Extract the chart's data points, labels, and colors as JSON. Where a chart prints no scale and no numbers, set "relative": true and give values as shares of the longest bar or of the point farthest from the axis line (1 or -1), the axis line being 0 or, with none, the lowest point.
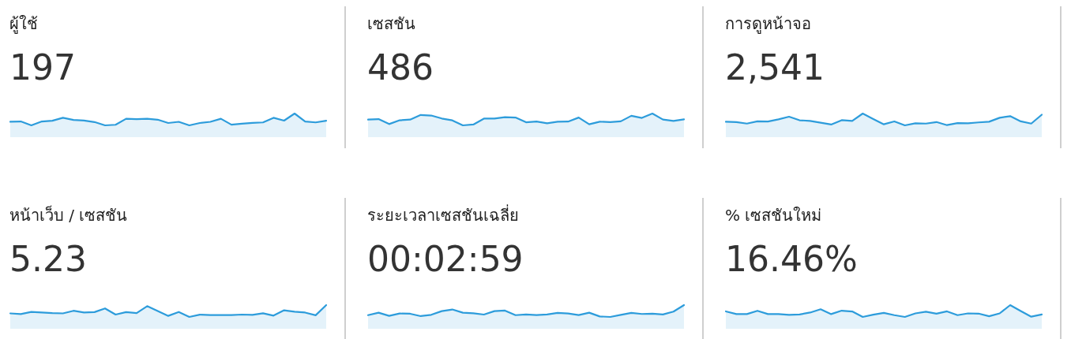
{
  "chart_data": [
    {
      "type": "area",
      "title": "ผู้ใช้",
      "subtitle": "197",
      "relative": true,
      "color": "#2d9cdb",
      "categories": [
        null,
        null,
        null,
        null,
        null,
        null,
        null,
        null,
        null,
        null,
        null,
        null,
        null,
        null,
        null,
        null,
        null,
        null,
        null,
        null,
        null,
        null,
        null,
        null,
        null,
        null,
        null,
        null,
        null,
        null,
        null
      ],
      "values": [
        0.31,
        0.33,
        0,
        0.33,
        0.39,
        0.64,
        0.46,
        0.41,
        0.28,
        0,
        0.05,
        0.56,
        0.53,
        0.56,
        0.48,
        0.2,
        0.3,
        0,
        0.2,
        0.3,
        0.56,
        0.06,
        0.14,
        0.21,
        0.25,
        0.64,
        0.4,
        1,
        0.33,
        0.25,
        0.39
      ]
    },
    {
      "type": "area",
      "title": "เซสชัน",
      "subtitle": "486",
      "relative": true,
      "color": "#2d9cdb",
      "categories": [
        null,
        null,
        null,
        null,
        null,
        null,
        null,
        null,
        null,
        null,
        null,
        null,
        null,
        null,
        null,
        null,
        null,
        null,
        null,
        null,
        null,
        null,
        null,
        null,
        null,
        null,
        null,
        null,
        null,
        null,
        null
      ],
      "values": [
        0.49,
        0.53,
        0.11,
        0.43,
        0.49,
        0.88,
        0.83,
        0.58,
        0.42,
        0,
        0.07,
        0.57,
        0.58,
        0.69,
        0.66,
        0.26,
        0.32,
        0.18,
        0.31,
        0.32,
        0.66,
        0.09,
        0.31,
        0.28,
        0.34,
        0.81,
        0.63,
        1,
        0.49,
        0.38,
        0.51
      ]
    },
    {
      "type": "area",
      "title": "การดูหน้าจอ",
      "subtitle": "2,541",
      "relative": true,
      "color": "#2d9cdb",
      "categories": [
        null,
        null,
        null,
        null,
        null,
        null,
        null,
        null,
        null,
        null,
        null,
        null,
        null,
        null,
        null,
        null,
        null,
        null,
        null,
        null,
        null,
        null,
        null,
        null,
        null,
        null,
        null,
        null,
        null,
        null,
        null
      ],
      "values": [
        0.31,
        0.28,
        0.15,
        0.34,
        0.33,
        0.51,
        0.73,
        0.43,
        0.38,
        0.22,
        0.07,
        0.44,
        0.38,
        1,
        0.54,
        0.09,
        0.33,
        0,
        0.17,
        0.15,
        0.28,
        0.02,
        0.19,
        0.17,
        0.25,
        0.31,
        0.64,
        0.78,
        0.34,
        0.15,
        0.9
      ]
    },
    {
      "type": "area",
      "title": "หน้าเว็บ / เซสชัน",
      "subtitle": "5.23",
      "relative": true,
      "color": "#2d9cdb",
      "categories": [
        null,
        null,
        null,
        null,
        null,
        null,
        null,
        null,
        null,
        null,
        null,
        null,
        null,
        null,
        null,
        null,
        null,
        null,
        null,
        null,
        null,
        null,
        null,
        null,
        null,
        null,
        null,
        null,
        null,
        null,
        null
      ],
      "values": [
        0.3,
        0.24,
        0.42,
        0.37,
        0.32,
        0.3,
        0.52,
        0.38,
        0.41,
        0.72,
        0.2,
        0.41,
        0.33,
        0.91,
        0.5,
        0.09,
        0.42,
        0,
        0.19,
        0.16,
        0.16,
        0.16,
        0.2,
        0.18,
        0.31,
        0.11,
        0.56,
        0.44,
        0.37,
        0.14,
        1
      ]
    },
    {
      "type": "area",
      "title": "ระยะเวลาเซสชันเฉลี่ย",
      "subtitle": "00:02:59",
      "relative": true,
      "color": "#2d9cdb",
      "categories": [
        null,
        null,
        null,
        null,
        null,
        null,
        null,
        null,
        null,
        null,
        null,
        null,
        null,
        null,
        null,
        null,
        null,
        null,
        null,
        null,
        null,
        null,
        null,
        null,
        null,
        null,
        null,
        null,
        null,
        null,
        null
      ],
      "values": [
        0.15,
        0.36,
        0.09,
        0.29,
        0.27,
        0.07,
        0.18,
        0.49,
        0.63,
        0.36,
        0.31,
        0.2,
        0.49,
        0.54,
        0.15,
        0.21,
        0.16,
        0.21,
        0.34,
        0.29,
        0.16,
        0.36,
        0.04,
        0,
        0.18,
        0.34,
        0.25,
        0.27,
        0.21,
        0.45,
        1
      ]
    },
    {
      "type": "area",
      "title": "% เซสชันใหม่",
      "subtitle": "16.46%",
      "relative": true,
      "color": "#2d9cdb",
      "categories": [
        null,
        null,
        null,
        null,
        null,
        null,
        null,
        null,
        null,
        null,
        null,
        null,
        null,
        null,
        null,
        null,
        null,
        null,
        null,
        null,
        null,
        null,
        null,
        null,
        null,
        null,
        null,
        null,
        null,
        null,
        null
      ],
      "values": [
        0.47,
        0.24,
        0.24,
        0.52,
        0.24,
        0.24,
        0.18,
        0.21,
        0.37,
        0.65,
        0.24,
        0.53,
        0.46,
        0,
        0.19,
        0.34,
        0.15,
        0,
        0.3,
        0.44,
        0.28,
        0.47,
        0.15,
        0.3,
        0.28,
        0.06,
        0.3,
        1,
        0.5,
        0.02,
        0.21
      ]
    }
  ]
}
